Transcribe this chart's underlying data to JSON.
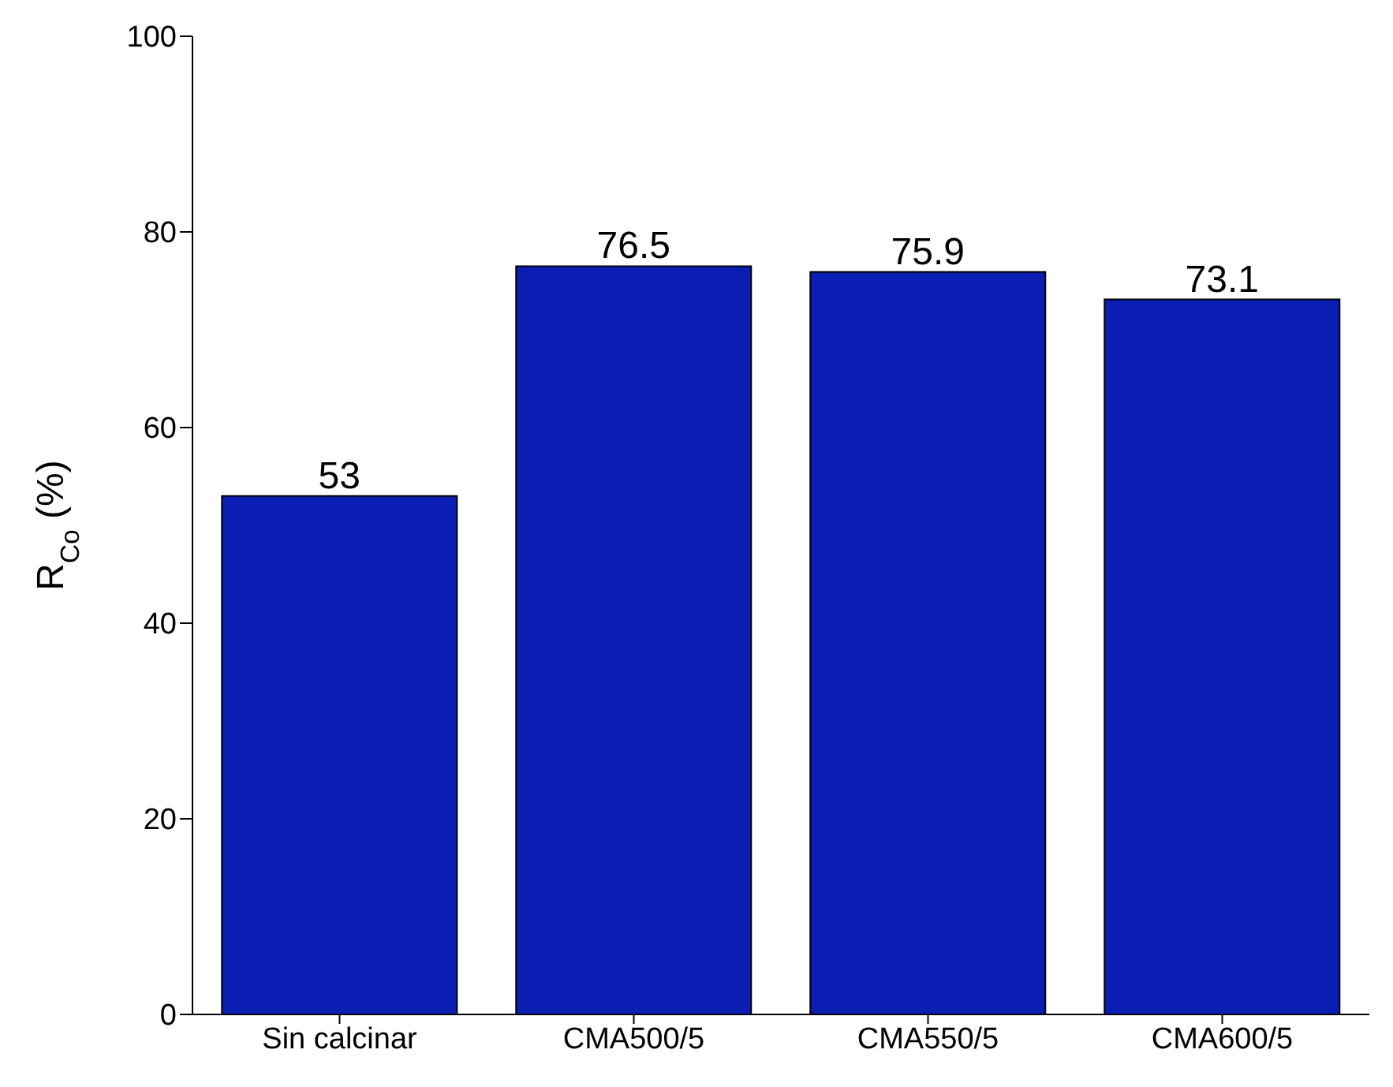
{
  "chart_data": {
    "type": "bar",
    "ylabel": "R$_{Co}$ (%)",
    "categories": [
      "Sin calcinar",
      "CMA500/5",
      "CMA550/5",
      "CMA600/5"
    ],
    "values": [
      53,
      76.5,
      75.9,
      73.1
    ],
    "color": "#0a1eb4",
    "ylim": [
      0,
      100
    ],
    "yticks": [
      0,
      20,
      40,
      60,
      80,
      100
    ],
    "grid": false,
    "data_labels": true
  }
}
